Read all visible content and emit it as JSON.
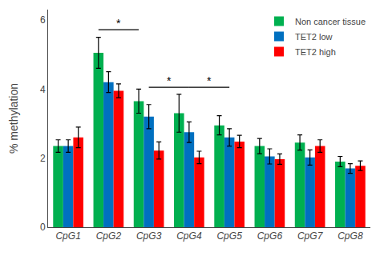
{
  "chart_data": {
    "type": "bar",
    "categories": [
      "CpG1",
      "CpG2",
      "CpG3",
      "CpG4",
      "CpG5",
      "CpG6",
      "CpG7",
      "CpG8"
    ],
    "series": [
      {
        "name": "Non cancer tissue",
        "color": "#00B050",
        "values": [
          2.35,
          5.05,
          3.65,
          3.3,
          2.95,
          2.35,
          2.45,
          1.9
        ],
        "errors": [
          0.18,
          0.45,
          0.35,
          0.55,
          0.28,
          0.22,
          0.22,
          0.15
        ]
      },
      {
        "name": "TET2 low",
        "color": "#0070C0",
        "values": [
          2.35,
          4.2,
          3.2,
          2.75,
          2.6,
          2.05,
          2.02,
          1.7
        ],
        "errors": [
          0.18,
          0.3,
          0.35,
          0.3,
          0.25,
          0.22,
          0.22,
          0.14
        ]
      },
      {
        "name": "TET2 high",
        "color": "#FF0000",
        "values": [
          2.6,
          3.95,
          2.22,
          2.02,
          2.48,
          1.97,
          2.35,
          1.78
        ],
        "errors": [
          0.3,
          0.2,
          0.25,
          0.18,
          0.18,
          0.15,
          0.18,
          0.14
        ]
      }
    ],
    "ylabel": "% methylation",
    "ylim": [
      0,
      6.3
    ],
    "yticks": [
      0,
      2,
      4,
      6
    ],
    "grid": false,
    "legend": "upper right",
    "annotations": [
      {
        "text": "*",
        "series": "Non cancer tissue",
        "from": "CpG2",
        "to": "CpG3",
        "y": 5.72
      },
      {
        "text": "*",
        "series": "TET2 low",
        "from": "CpG3",
        "to": "CpG4",
        "y": 4.05
      },
      {
        "text": "*",
        "series": "TET2 low",
        "from": "CpG4",
        "to": "CpG5",
        "y": 4.05
      }
    ]
  }
}
